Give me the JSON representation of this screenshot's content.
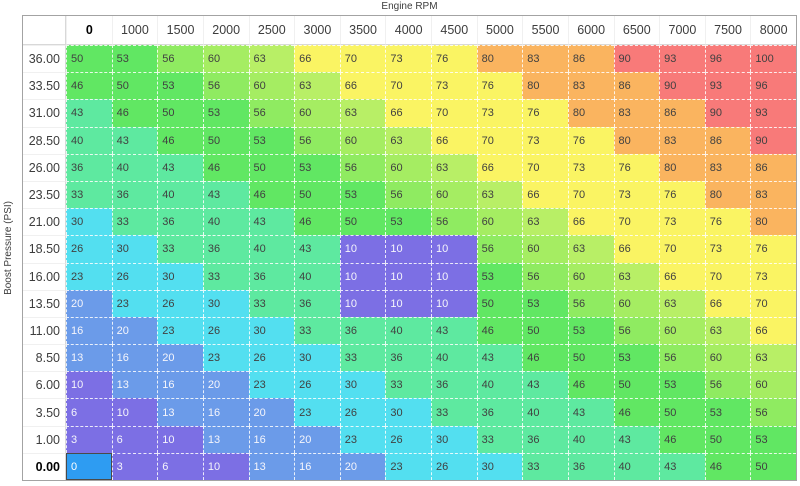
{
  "title": "Engine RPM",
  "y_axis_label": "Boost Pressure (PSI)",
  "map": {
    "columns": [
      "0",
      "1000",
      "1500",
      "2000",
      "2500",
      "3000",
      "3500",
      "4000",
      "4500",
      "5000",
      "5500",
      "6000",
      "6500",
      "7000",
      "7500",
      "8000"
    ],
    "rows": [
      {
        "label": "36.00",
        "values": [
          50,
          53,
          56,
          60,
          63,
          66,
          70,
          73,
          76,
          80,
          83,
          86,
          90,
          93,
          96,
          100
        ]
      },
      {
        "label": "33.50",
        "values": [
          46,
          50,
          53,
          56,
          60,
          63,
          66,
          70,
          73,
          76,
          80,
          83,
          86,
          90,
          93,
          96
        ]
      },
      {
        "label": "31.00",
        "values": [
          43,
          46,
          50,
          53,
          56,
          60,
          63,
          66,
          70,
          73,
          76,
          80,
          83,
          86,
          90,
          93
        ]
      },
      {
        "label": "28.50",
        "values": [
          40,
          43,
          46,
          50,
          53,
          56,
          60,
          63,
          66,
          70,
          73,
          76,
          80,
          83,
          86,
          90
        ]
      },
      {
        "label": "26.00",
        "values": [
          36,
          40,
          43,
          46,
          50,
          53,
          56,
          60,
          63,
          66,
          70,
          73,
          76,
          80,
          83,
          86
        ]
      },
      {
        "label": "23.50",
        "values": [
          33,
          36,
          40,
          43,
          46,
          50,
          53,
          56,
          60,
          63,
          66,
          70,
          73,
          76,
          80,
          83
        ]
      },
      {
        "label": "21.00",
        "values": [
          30,
          33,
          36,
          40,
          43,
          46,
          50,
          53,
          56,
          60,
          63,
          66,
          70,
          73,
          76,
          80
        ]
      },
      {
        "label": "18.50",
        "values": [
          26,
          30,
          33,
          36,
          40,
          43,
          10,
          10,
          10,
          56,
          60,
          63,
          66,
          70,
          73,
          76
        ]
      },
      {
        "label": "16.00",
        "values": [
          23,
          26,
          30,
          33,
          36,
          40,
          10,
          10,
          10,
          53,
          56,
          60,
          63,
          66,
          70,
          73
        ]
      },
      {
        "label": "13.50",
        "values": [
          20,
          23,
          26,
          30,
          33,
          36,
          10,
          10,
          10,
          50,
          53,
          56,
          60,
          63,
          66,
          70
        ]
      },
      {
        "label": "11.00",
        "values": [
          16,
          20,
          23,
          26,
          30,
          33,
          36,
          40,
          43,
          46,
          50,
          53,
          56,
          60,
          63,
          66
        ]
      },
      {
        "label": "8.50",
        "values": [
          13,
          16,
          20,
          23,
          26,
          30,
          33,
          36,
          40,
          43,
          46,
          50,
          53,
          56,
          60,
          63
        ]
      },
      {
        "label": "6.00",
        "values": [
          10,
          13,
          16,
          20,
          23,
          26,
          30,
          33,
          36,
          40,
          43,
          46,
          50,
          53,
          56,
          60
        ]
      },
      {
        "label": "3.50",
        "values": [
          6,
          10,
          13,
          16,
          20,
          23,
          26,
          30,
          33,
          36,
          40,
          43,
          46,
          50,
          53,
          56
        ]
      },
      {
        "label": "1.00",
        "values": [
          3,
          6,
          10,
          13,
          16,
          20,
          23,
          26,
          30,
          33,
          36,
          40,
          43,
          46,
          50,
          53
        ]
      },
      {
        "label": "0.00",
        "values": [
          0,
          3,
          6,
          10,
          13,
          16,
          20,
          23,
          26,
          30,
          33,
          36,
          40,
          43,
          46,
          50
        ]
      }
    ],
    "selection": {
      "row_label": "0.00",
      "col_label": "0",
      "bg": "#2e9cf2",
      "border": "#4a4a4a"
    },
    "light_text_max": 20,
    "value_colors": {
      "0": "#7c6fe4",
      "3": "#7c6fe4",
      "6": "#7c6fe4",
      "10": "#7c6fe4",
      "13": "#6b9be9",
      "16": "#6b9be9",
      "20": "#6b9be9",
      "23": "#53dff0",
      "26": "#53dff0",
      "30": "#53dff0",
      "33": "#5ee9a0",
      "36": "#5ee9a0",
      "40": "#5ee9a0",
      "43": "#5ee9a0",
      "46": "#61e763",
      "50": "#61e763",
      "53": "#61e763",
      "56": "#8feb61",
      "60": "#a5ed62",
      "63": "#b8ef66",
      "66": "#faf463",
      "70": "#faf463",
      "73": "#faf463",
      "76": "#faf463",
      "80": "#fab45f",
      "83": "#fab45f",
      "86": "#fab45f",
      "90": "#f87a79",
      "93": "#f87a79",
      "96": "#f87a79",
      "100": "#f87a79"
    }
  }
}
